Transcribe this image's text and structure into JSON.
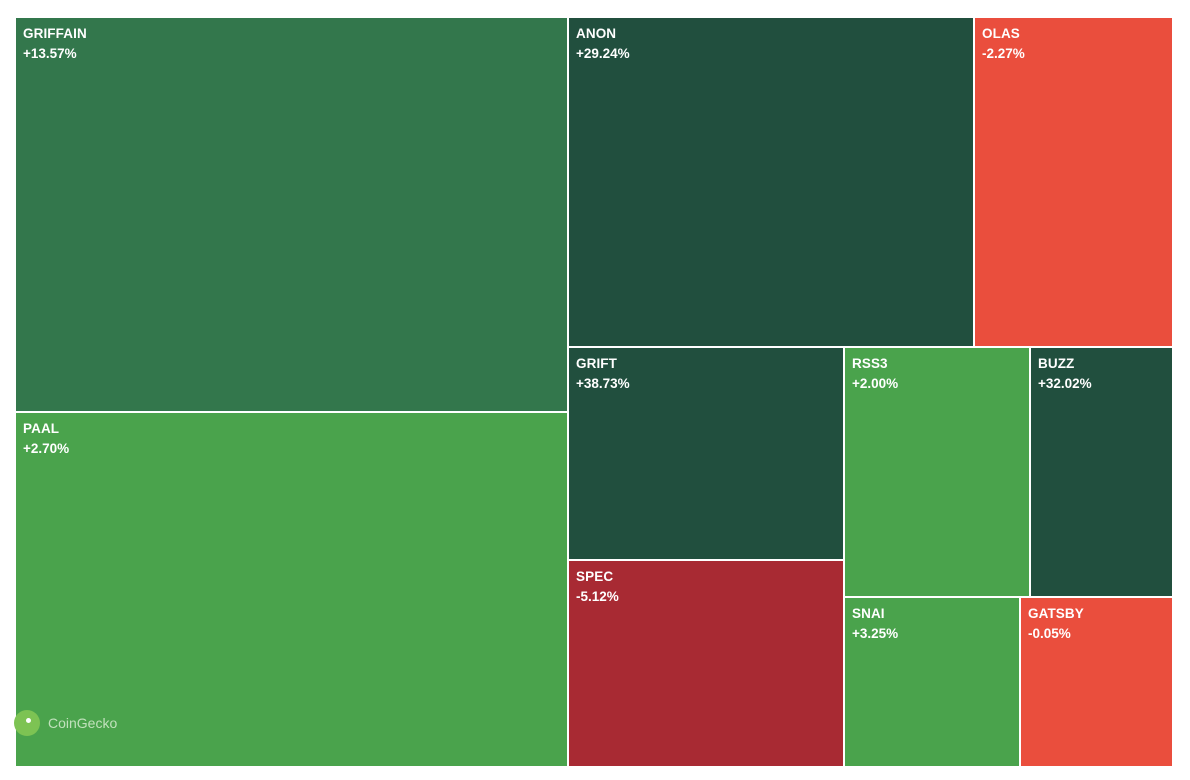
{
  "chart_data": {
    "type": "treemap",
    "colors": {
      "strong_up": "#214f3e",
      "up": "#33774c",
      "slight_up": "#4aa34c",
      "slight_down": "#ea4e3d",
      "down": "#a82a33"
    },
    "tiles": [
      {
        "symbol": "GRIFFAIN",
        "change": "+13.57%",
        "color": "#33774c"
      },
      {
        "symbol": "PAAL",
        "change": "+2.70%",
        "color": "#4aa34c"
      },
      {
        "symbol": "ANON",
        "change": "+29.24%",
        "color": "#214f3e"
      },
      {
        "symbol": "OLAS",
        "change": "-2.27%",
        "color": "#ea4e3d"
      },
      {
        "symbol": "GRIFT",
        "change": "+38.73%",
        "color": "#214f3e"
      },
      {
        "symbol": "SPEC",
        "change": "-5.12%",
        "color": "#a82a33"
      },
      {
        "symbol": "RSS3",
        "change": "+2.00%",
        "color": "#4aa34c"
      },
      {
        "symbol": "BUZZ",
        "change": "+32.02%",
        "color": "#214f3e"
      },
      {
        "symbol": "SNAI",
        "change": "+3.25%",
        "color": "#4aa34c"
      },
      {
        "symbol": "GATSBY",
        "change": "-0.05%",
        "color": "#ea4e3d"
      }
    ]
  },
  "watermark": {
    "text": "CoinGecko",
    "icon": "coingecko-logo-icon"
  }
}
